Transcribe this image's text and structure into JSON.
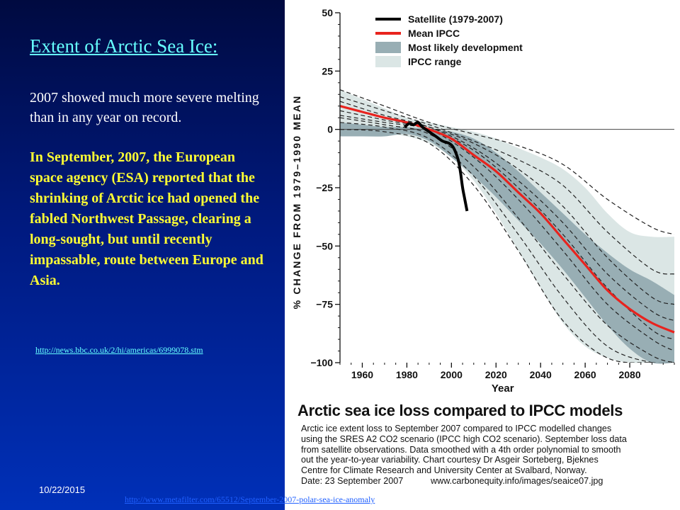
{
  "slide": {
    "title": "Extent of Arctic Sea Ice:",
    "intro": "2007 showed much more severe melting than in any year on record.",
    "news": "In September, 2007, the European space agency (ESA) reported that the shrinking of Arctic ice had opened the fabled Northwest Passage, clearing a long-sought, but until recently impassable, route between Europe and Asia.",
    "link_bbc": "http://news.bbc.co.uk/2/hi/americas/6999078.stm",
    "date": "10/22/2015",
    "link_metafilter": "http://www.metafilter.com/65512/September-2007-polar-sea-ice-anomaly"
  },
  "figure": {
    "title": "Arctic sea ice loss compared to IPCC models",
    "caption_lines": [
      "Arctic ice extent loss to September 2007 compared to IPCC modelled changes",
      "using the SRES A2 CO2 scenario (IPCC high CO2 scenario). September loss data",
      "from satellite observations. Data smoothed with a 4th order polynomial to smooth",
      "out the year-to-year variability. Chart courtesy Dr Asgeir Sorteberg, Bjeknes",
      "Centre for Climate Research and University Center at Svalbard, Norway."
    ],
    "caption_date": "Date: 23 September 2007",
    "caption_source": "www.carbonequity.info/images/seaice07.jpg"
  },
  "chart_data": {
    "type": "line",
    "xlabel": "Year",
    "ylabel": "% CHANGE FROM 1979–1990 MEAN",
    "xlim": [
      1950,
      2100
    ],
    "ylim": [
      -100,
      50
    ],
    "xticks": [
      1960,
      1980,
      2000,
      2020,
      2040,
      2060,
      2080
    ],
    "yticks": [
      50,
      25,
      0,
      -25,
      -50,
      -75,
      -100
    ],
    "legend": [
      {
        "label": "Satellite (1979-2007)",
        "kind": "line",
        "color": "#000000"
      },
      {
        "label": "Mean IPCC",
        "kind": "line",
        "color": "#e8231e"
      },
      {
        "label": "Most likely development",
        "kind": "box",
        "color": "#98aeb4"
      },
      {
        "label": "IPCC range",
        "kind": "box",
        "color": "#dbe6e5"
      }
    ],
    "legend_position": "top-right",
    "colors": {
      "range": "#dbe6e5",
      "likely": "#98aeb4",
      "mean": "#e8231e",
      "satellite": "#000000",
      "models": "#222222"
    },
    "ipcc_range": {
      "x": [
        1950,
        1960,
        1970,
        1980,
        1990,
        2000,
        2010,
        2020,
        2030,
        2040,
        2050,
        2060,
        2070,
        2080,
        2090,
        2100
      ],
      "upper": [
        17,
        13,
        9,
        5,
        3,
        1,
        -1,
        -4,
        -8,
        -12,
        -17,
        -25,
        -36,
        -44,
        -46,
        -46
      ],
      "lower": [
        -1,
        -2,
        -2,
        -3,
        -6,
        -12,
        -22,
        -36,
        -52,
        -68,
        -83,
        -93,
        -98,
        -100,
        -100,
        -100
      ]
    },
    "likely_range": {
      "x": [
        1950,
        1960,
        1970,
        1980,
        1990,
        2000,
        2010,
        2020,
        2030,
        2040,
        2050,
        2060,
        2070,
        2080,
        2090,
        2100
      ],
      "upper": [
        3,
        2,
        1,
        1,
        0,
        -1,
        -4,
        -10,
        -18,
        -27,
        -36,
        -45,
        -53,
        -60,
        -65,
        -71
      ],
      "lower": [
        -3,
        -3,
        -3,
        -2,
        -5,
        -12,
        -20,
        -29,
        -39,
        -49,
        -60,
        -72,
        -84,
        -94,
        -100,
        -100
      ]
    },
    "mean_ipcc": {
      "x": [
        1950,
        1960,
        1970,
        1980,
        1990,
        2000,
        2010,
        2020,
        2030,
        2040,
        2050,
        2060,
        2070,
        2080,
        2090,
        2100
      ],
      "y": [
        10,
        7.5,
        5,
        3,
        0,
        -4,
        -11,
        -18,
        -27,
        -36,
        -47,
        -58,
        -69,
        -77,
        -83,
        -87
      ]
    },
    "satellite": {
      "x": [
        1979,
        1981,
        1983,
        1985,
        1987,
        1990,
        1993,
        1996,
        1999,
        2001,
        2003,
        2004,
        2005,
        2006,
        2007
      ],
      "y": [
        1,
        2.5,
        2,
        3,
        1,
        -1,
        -3,
        -5,
        -6,
        -8,
        -13,
        -18,
        -25,
        -30,
        -35
      ]
    },
    "model_runs": [
      {
        "x": [
          1950,
          1970,
          1990,
          2010,
          2030,
          2050,
          2070,
          2090,
          2100
        ],
        "y": [
          17,
          10,
          3,
          -2,
          -7,
          -15,
          -30,
          -42,
          -45
        ]
      },
      {
        "x": [
          1950,
          1970,
          1990,
          2010,
          2030,
          2050,
          2070,
          2090,
          2100
        ],
        "y": [
          14,
          8,
          2,
          -5,
          -13,
          -24,
          -44,
          -60,
          -62
        ]
      },
      {
        "x": [
          1950,
          1970,
          1990,
          2010,
          2030,
          2050,
          2070,
          2090,
          2100
        ],
        "y": [
          12,
          6,
          1,
          -8,
          -22,
          -40,
          -62,
          -78,
          -82
        ]
      },
      {
        "x": [
          1950,
          1970,
          1990,
          2010,
          2030,
          2050,
          2070,
          2090,
          2100
        ],
        "y": [
          8,
          4,
          0,
          -12,
          -30,
          -52,
          -75,
          -90,
          -95
        ]
      },
      {
        "x": [
          1950,
          1970,
          1990,
          2010,
          2030,
          2050,
          2070,
          2090,
          2100
        ],
        "y": [
          5,
          2,
          -2,
          -16,
          -38,
          -62,
          -84,
          -97,
          -100
        ]
      },
      {
        "x": [
          1950,
          1970,
          1990,
          2010,
          2030,
          2050,
          2070,
          2090,
          2100
        ],
        "y": [
          3,
          1,
          -4,
          -20,
          -45,
          -72,
          -93,
          -100,
          -100
        ]
      },
      {
        "x": [
          1950,
          1970,
          1990,
          2010,
          2030,
          2050,
          2070,
          2090,
          2100
        ],
        "y": [
          0,
          -1,
          -6,
          -24,
          -52,
          -82,
          -98,
          -100,
          -100
        ]
      },
      {
        "x": [
          1950,
          1970,
          1990,
          2010,
          2030,
          2050,
          2070,
          2090,
          2100
        ],
        "y": [
          6,
          3,
          0,
          -9,
          -25,
          -45,
          -68,
          -86,
          -90
        ]
      },
      {
        "x": [
          1950,
          1970,
          1990,
          2010,
          2030,
          2050,
          2070,
          2090,
          2100
        ],
        "y": [
          10,
          5,
          1,
          -6,
          -17,
          -33,
          -55,
          -72,
          -75
        ]
      }
    ]
  }
}
